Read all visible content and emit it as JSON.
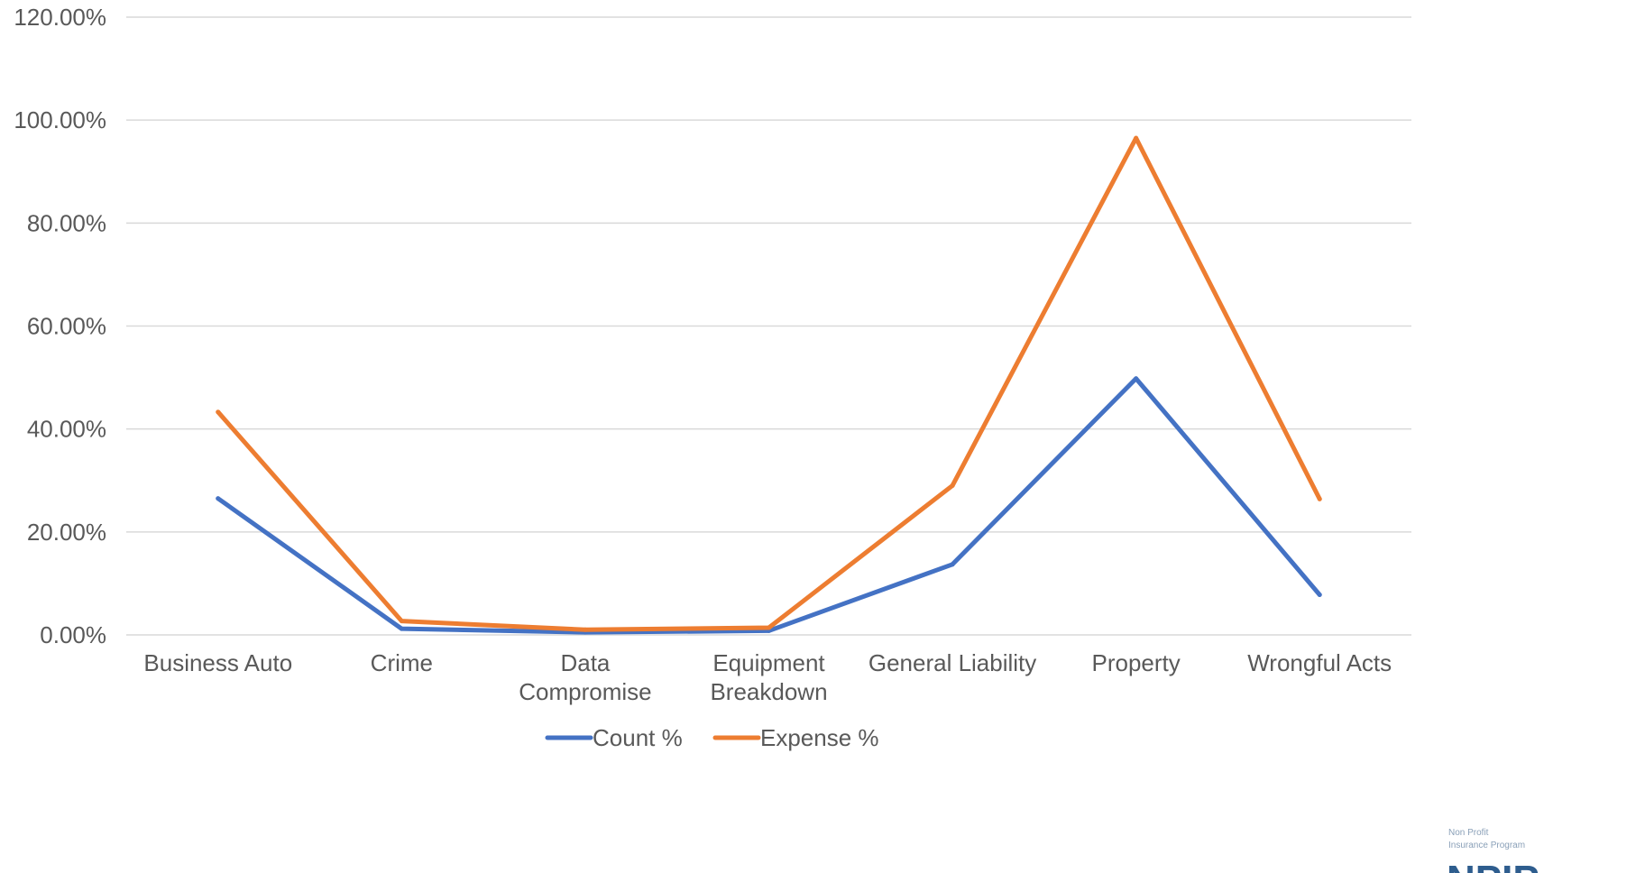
{
  "chart_data": {
    "type": "line",
    "categories": [
      [
        "Business Auto"
      ],
      [
        "Crime"
      ],
      [
        "Data",
        "Compromise"
      ],
      [
        "Equipment",
        "Breakdown"
      ],
      [
        "General Liability"
      ],
      [
        "Property"
      ],
      [
        "Wrongful Acts"
      ]
    ],
    "series": [
      {
        "name": "Count %",
        "color": "#4472c4",
        "values": [
          26.5,
          1.2,
          0.5,
          0.8,
          13.7,
          49.8,
          7.8
        ]
      },
      {
        "name": "Expense %",
        "color": "#ed7d31",
        "values": [
          43.3,
          2.7,
          1.0,
          1.4,
          29.0,
          96.5,
          26.4
        ]
      }
    ],
    "ylim": [
      0,
      120
    ],
    "yticks": [
      "0.00%",
      "20.00%",
      "40.00%",
      "60.00%",
      "80.00%",
      "100.00%",
      "120.00%"
    ],
    "grid": true,
    "legend": "bottom"
  },
  "logo": {
    "line1": "Non Profit",
    "line2": "Insurance Program",
    "mark": "NPIP"
  }
}
